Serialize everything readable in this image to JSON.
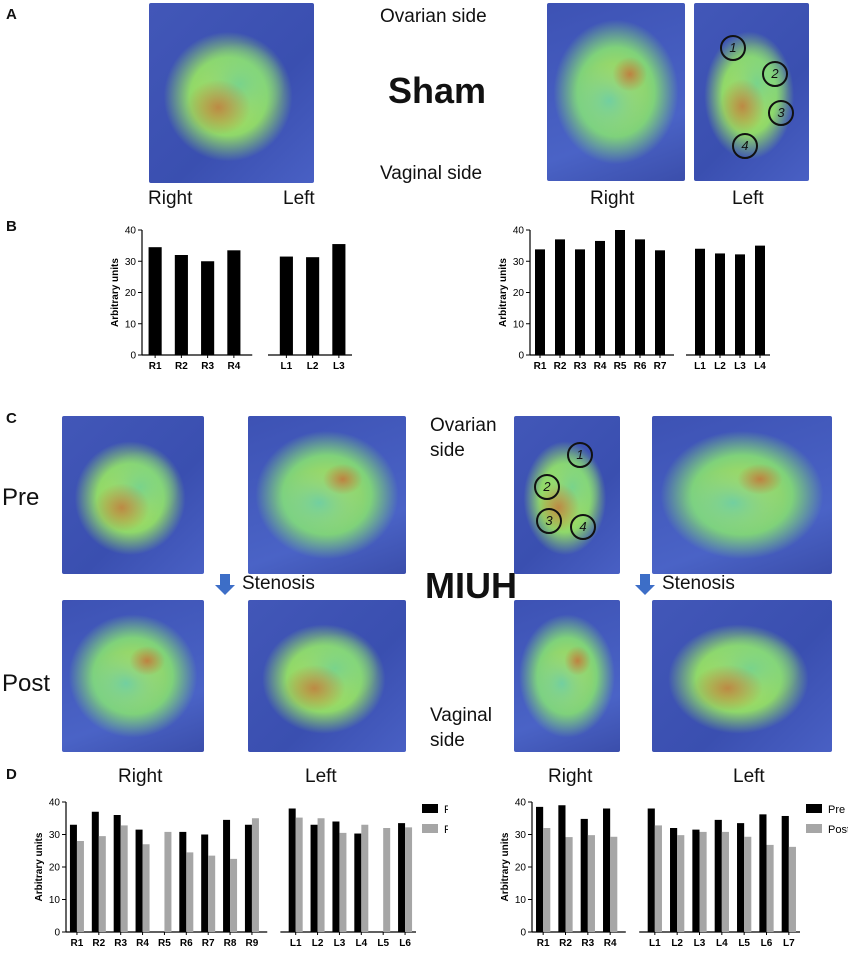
{
  "panels": {
    "A": "A",
    "B": "B",
    "C": "C",
    "D": "D"
  },
  "labels": {
    "ovarian_side": "Ovarian side",
    "vaginal_side": "Vaginal side",
    "sham": "Sham",
    "miuh": "MIUH",
    "right": "Right",
    "left": "Left",
    "ovarian": "Ovarian",
    "side": "side",
    "vaginal": "Vaginal",
    "pre": "Pre",
    "post": "Post",
    "stenosis": "Stenosis"
  },
  "circle_labels": [
    "1",
    "2",
    "3",
    "4"
  ],
  "colors": {
    "pre": "#000000",
    "post": "#a6a6a6",
    "arrow": "#3d6ec7"
  },
  "chart_data": [
    {
      "type": "bar",
      "categories": [
        "R1",
        "R2",
        "R3",
        "R4",
        "L1",
        "L2",
        "L3"
      ],
      "gap_after": 4,
      "series": [
        {
          "values": [
            34.5,
            32,
            30,
            33.5,
            31.5,
            31.3,
            35.5
          ]
        }
      ],
      "ylabel": "Arbitrary units",
      "ylim": [
        0,
        40
      ],
      "yticks": [
        0,
        10,
        20,
        30,
        40
      ]
    },
    {
      "type": "bar",
      "categories": [
        "R1",
        "R2",
        "R3",
        "R4",
        "R5",
        "R6",
        "R7",
        "L1",
        "L2",
        "L3",
        "L4"
      ],
      "gap_after": 7,
      "series": [
        {
          "values": [
            33.8,
            37,
            33.8,
            36.5,
            40,
            37,
            33.5,
            34,
            32.5,
            32.2,
            35
          ]
        }
      ],
      "ylabel": "Arbitrary units",
      "ylim": [
        0,
        40
      ],
      "yticks": [
        0,
        10,
        20,
        30,
        40
      ]
    },
    {
      "type": "bar",
      "categories": [
        "R1",
        "R2",
        "R3",
        "R4",
        "R5",
        "R6",
        "R7",
        "R8",
        "R9",
        "L1",
        "L2",
        "L3",
        "L4",
        "L5",
        "L6"
      ],
      "gap_after": 9,
      "series": [
        {
          "name": "Pre",
          "values": [
            33,
            37,
            36,
            31.5,
            null,
            30.8,
            30,
            34.5,
            33,
            38,
            33,
            34,
            30.3,
            null,
            33.5
          ]
        },
        {
          "name": "Post",
          "values": [
            28,
            29.5,
            32.8,
            27,
            30.8,
            24.5,
            23.5,
            22.5,
            35,
            35.2,
            35,
            30.5,
            33,
            32,
            32.2
          ]
        }
      ],
      "ylabel": "Arbitrary units",
      "ylim": [
        0,
        40
      ],
      "yticks": [
        0,
        10,
        20,
        30,
        40
      ],
      "legend": "right"
    },
    {
      "type": "bar",
      "categories": [
        "R1",
        "R2",
        "R3",
        "R4",
        "L1",
        "L2",
        "L3",
        "L4",
        "L5",
        "L6",
        "L7"
      ],
      "gap_after": 4,
      "series": [
        {
          "name": "Pre",
          "values": [
            38.5,
            39,
            34.8,
            38,
            38,
            32,
            31.5,
            34.5,
            33.5,
            36.2,
            35.7
          ]
        },
        {
          "name": "Post",
          "values": [
            32,
            29.2,
            29.8,
            29.3,
            32.8,
            29.8,
            30.8,
            30.8,
            29.3,
            26.8,
            26.2
          ]
        }
      ],
      "ylabel": "Arbitrary units",
      "ylim": [
        0,
        40
      ],
      "yticks": [
        0,
        10,
        20,
        30,
        40
      ],
      "legend": "right"
    }
  ]
}
